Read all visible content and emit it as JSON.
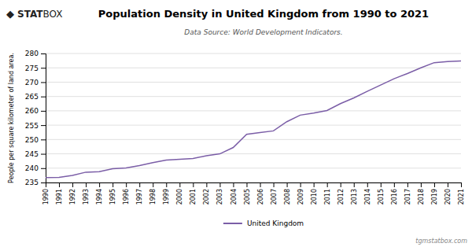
{
  "chart_data": {
    "type": "line",
    "title": "Population Density in United Kingdom from 1990 to 2021",
    "subtitle": "Data Source: World Development Indicators.",
    "ylabel": "People per square kilometer of land area.",
    "annotations": [
      "◆",
      "STAT",
      "BOX",
      "tgmstatbox.com"
    ],
    "x": [
      1990,
      1991,
      1992,
      1993,
      1994,
      1995,
      1996,
      1997,
      1998,
      1999,
      2000,
      2001,
      2002,
      2003,
      2004,
      2005,
      2006,
      2007,
      2008,
      2009,
      2010,
      2011,
      2012,
      2013,
      2014,
      2015,
      2016,
      2017,
      2018,
      2019,
      2020,
      2021
    ],
    "series": [
      {
        "name": "United Kingdom",
        "color": "#7B5EA7",
        "values": [
          236.7,
          236.8,
          237.5,
          238.6,
          238.8,
          239.8,
          240.1,
          240.9,
          241.9,
          242.8,
          243.1,
          243.4,
          244.3,
          245.0,
          247.2,
          251.8,
          252.4,
          253.0,
          256.2,
          258.5,
          259.2,
          260.1,
          262.5,
          264.5,
          266.8,
          269.0,
          271.2,
          273.0,
          275.0,
          276.8,
          277.2,
          277.4
        ]
      }
    ],
    "xlim": [
      1990,
      2021
    ],
    "xticks": [
      1990,
      1991,
      1992,
      1993,
      1994,
      1995,
      1996,
      1997,
      1998,
      1999,
      2000,
      2001,
      2002,
      2003,
      2004,
      2005,
      2006,
      2007,
      2008,
      2009,
      2010,
      2011,
      2012,
      2013,
      2014,
      2015,
      2016,
      2017,
      2018,
      2019,
      2020,
      2021
    ],
    "ylim": [
      235,
      280
    ],
    "yticks": [
      235,
      240,
      245,
      250,
      255,
      260,
      265,
      270,
      275,
      280
    ],
    "grid": true,
    "legend": "bottom"
  }
}
